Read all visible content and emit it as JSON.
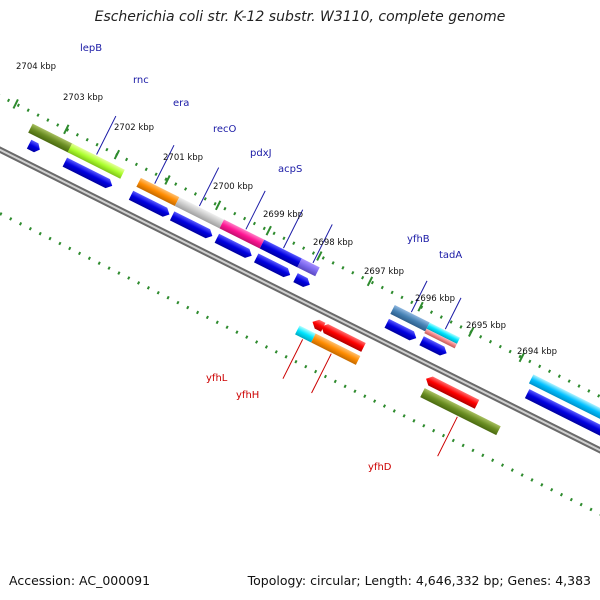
{
  "title": "Escherichia coli str. K-12 substr. W3110, complete genome",
  "footer": {
    "accession": "Accession: AC_000091",
    "topology": "Topology: circular; Length: 4,646,332 bp; Genes: 4,383"
  },
  "colors": {
    "backbone": "#808080",
    "tick_marks": "#2e8b2e",
    "label_top": "#1a1aa6",
    "label_bottom": "#cc0000",
    "forward_cds": "#0000e0",
    "reverse_cds": "#ff0000"
  },
  "ticks": [
    "2704 kbp",
    "2703 kbp",
    "2702 kbp",
    "2701 kbp",
    "2700 kbp",
    "2699 kbp",
    "2698 kbp",
    "2697 kbp",
    "2696 kbp",
    "2695 kbp",
    "2694 kbp"
  ],
  "labels_top": [
    "lepB",
    "rnc",
    "era",
    "recO",
    "pdxJ",
    "acpS",
    "yfhB",
    "tadA"
  ],
  "labels_bottom": [
    "yfhL",
    "yfhH",
    "yfhD"
  ]
}
